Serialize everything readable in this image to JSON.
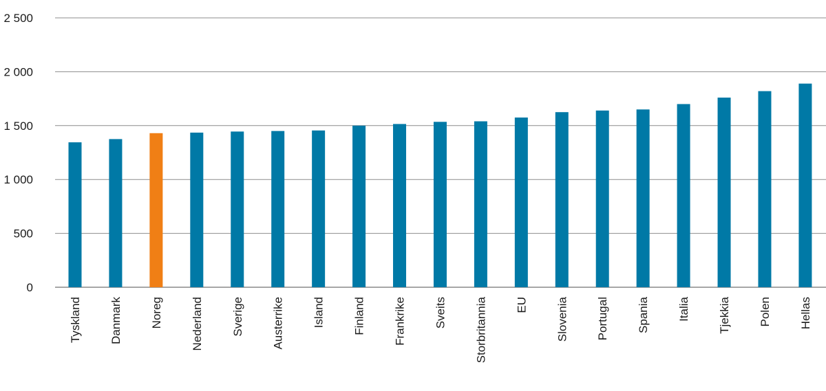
{
  "chart_data": {
    "type": "bar",
    "title": "",
    "xlabel": "",
    "ylabel": "",
    "ylim": [
      0,
      2500
    ],
    "y_ticks": [
      0,
      500,
      1000,
      1500,
      2000,
      2500
    ],
    "y_tick_labels": [
      "0",
      "500",
      "1 000",
      "1 500",
      "2 000",
      "2 500"
    ],
    "grid": true,
    "legend": "none",
    "categories": [
      "Tyskland",
      "Danmark",
      "Noreg",
      "Nederland",
      "Sverige",
      "Austerrike",
      "Island",
      "Finland",
      "Frankrike",
      "Sveits",
      "Storbritannia",
      "EU",
      "Slovenia",
      "Portugal",
      "Spania",
      "Italia",
      "Tjekkia",
      "Polen",
      "Hellas"
    ],
    "values": [
      1345,
      1375,
      1430,
      1435,
      1445,
      1450,
      1455,
      1500,
      1515,
      1535,
      1540,
      1575,
      1625,
      1640,
      1650,
      1700,
      1760,
      1820,
      1890
    ],
    "highlight_category": "Noreg",
    "colors": {
      "default": "#0079a6",
      "highlight": "#f07f15",
      "grid": "#8c8c8c",
      "axis": "#4d4d4d"
    }
  }
}
